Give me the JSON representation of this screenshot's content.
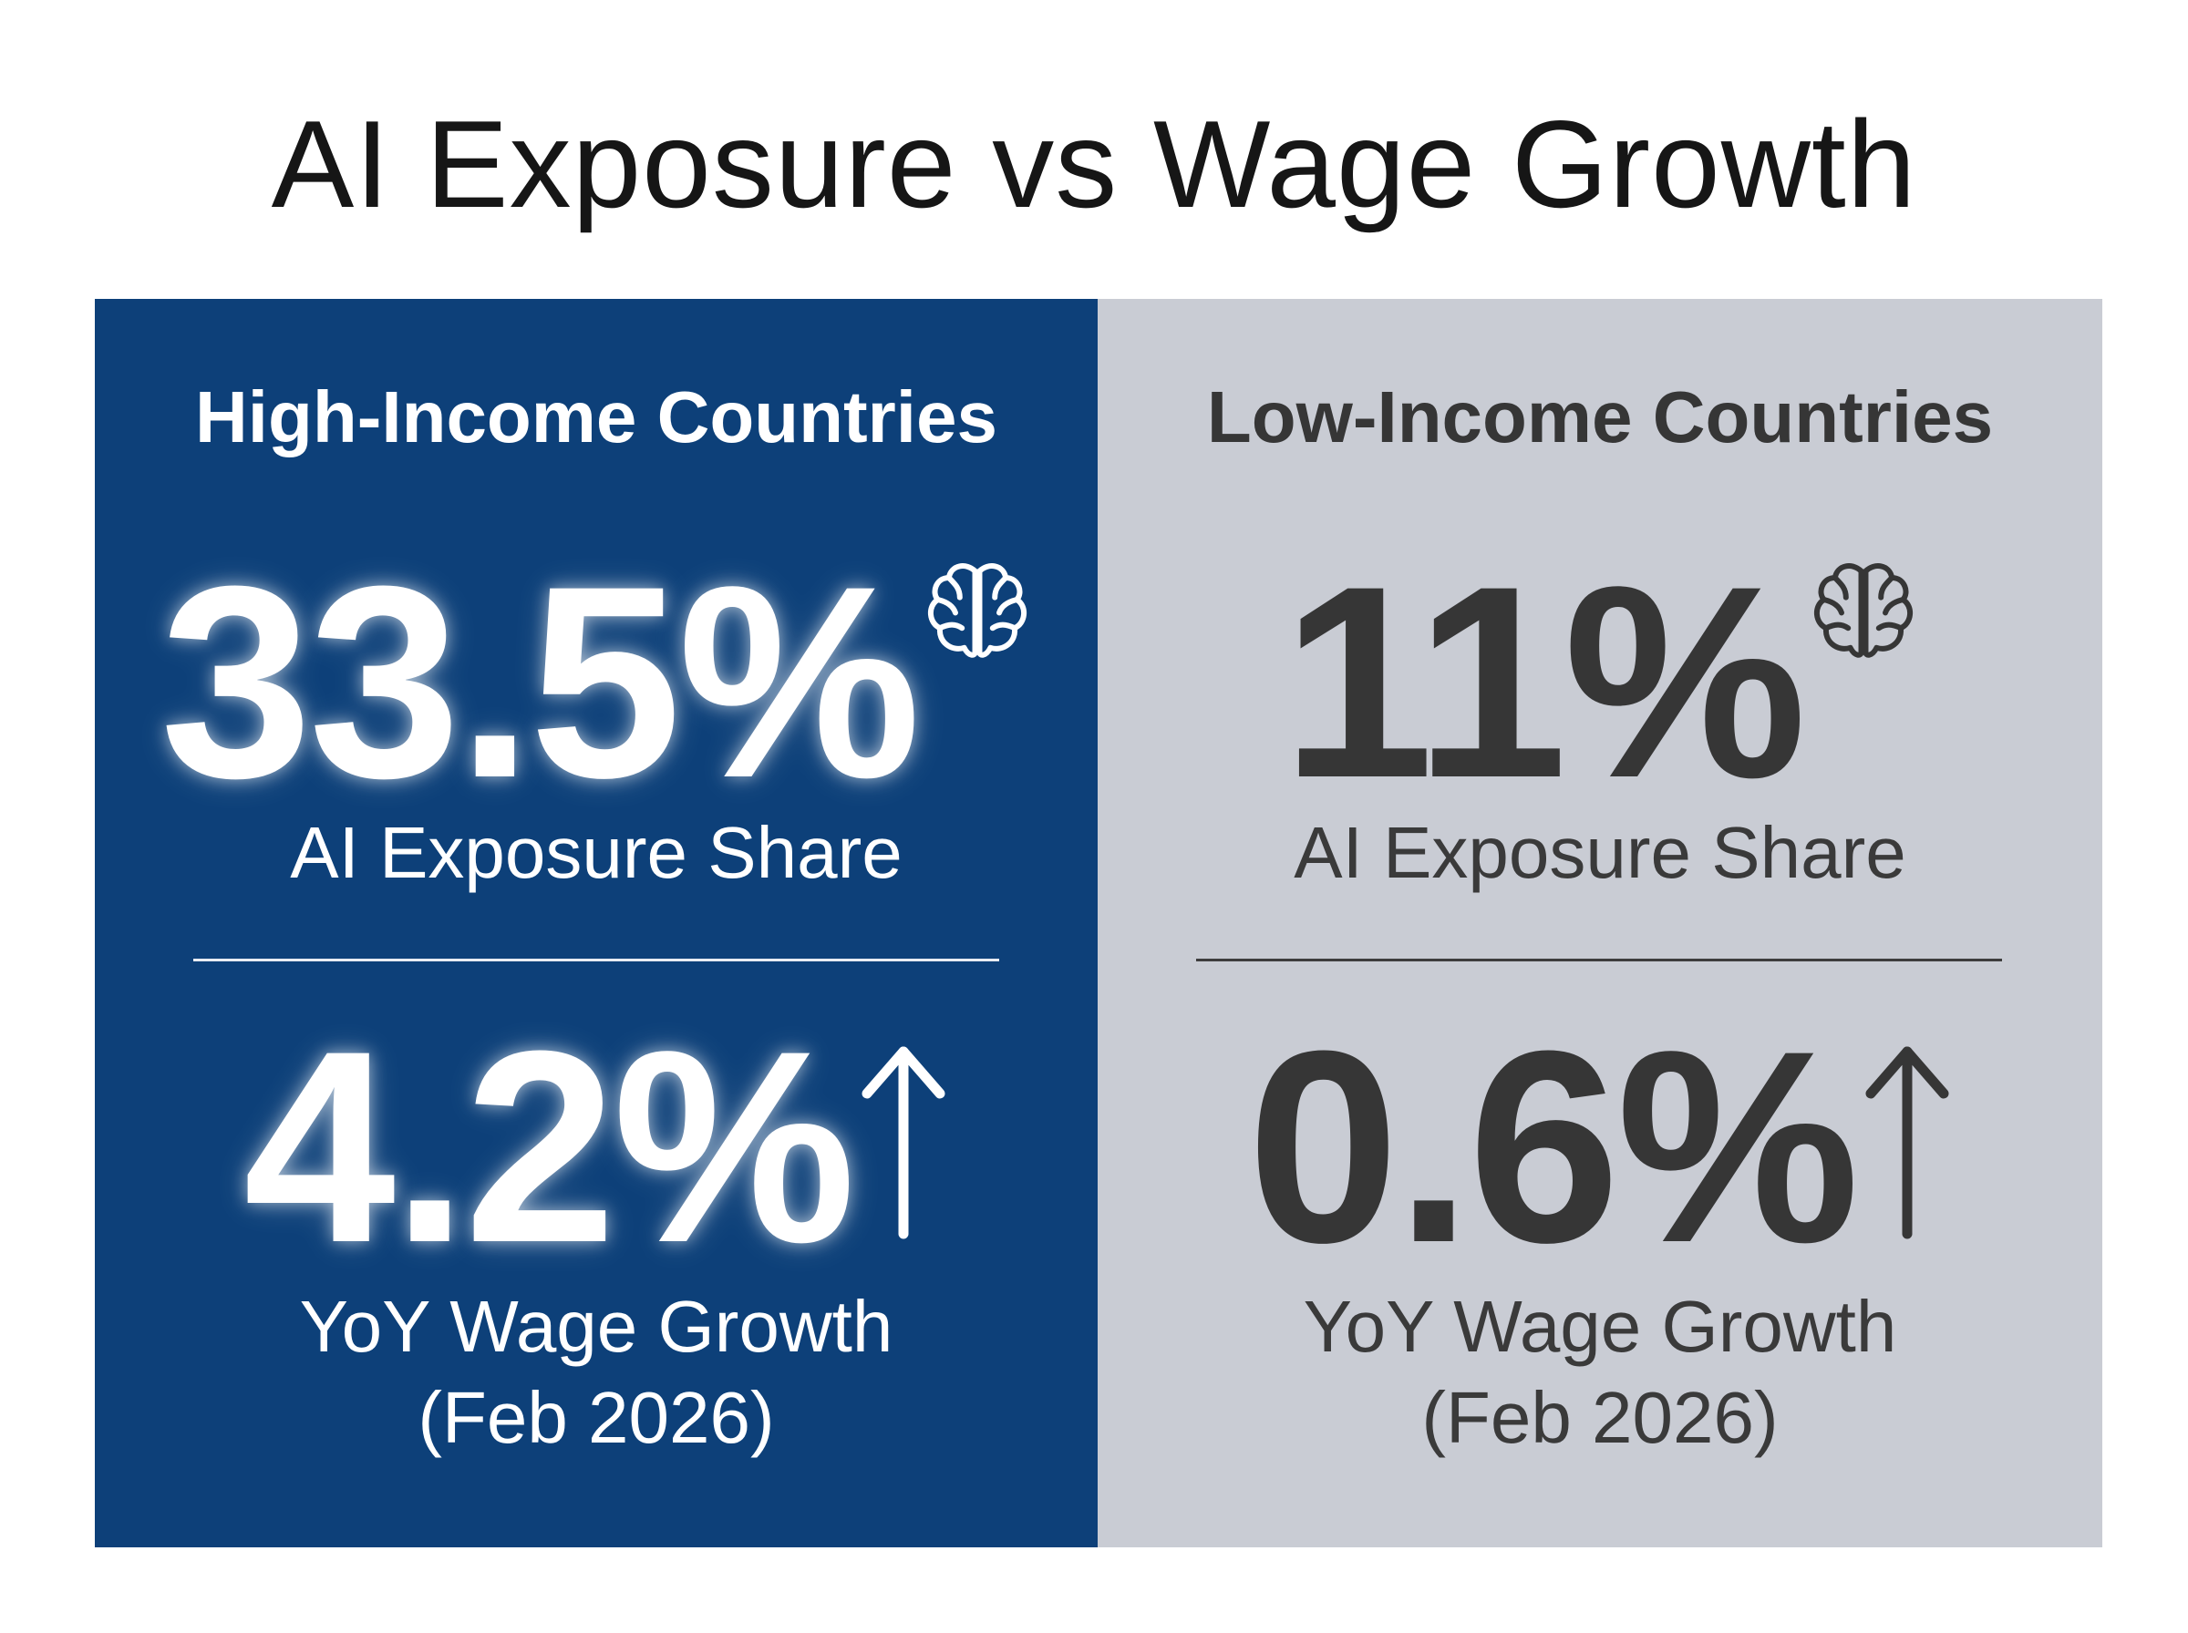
{
  "title": "AI Exposure vs Wage Growth",
  "colors": {
    "high_panel_bg": "#0d4079",
    "low_panel_bg": "#c9ccd4",
    "high_text": "#ffffff",
    "low_text": "#363636"
  },
  "panels": [
    {
      "heading": "High-Income Countries",
      "exposure_value": "33.5%",
      "exposure_icon": "brain-icon",
      "exposure_label": "AI Exposure Share",
      "wage_value": "4.2%",
      "wage_icon": "arrow-up-icon",
      "wage_label": "YoY Wage Growth",
      "wage_period": "(Feb 2026)"
    },
    {
      "heading": "Low-Income Countries",
      "exposure_value": "11%",
      "exposure_icon": "brain-icon",
      "exposure_label": "AI Exposure Share",
      "wage_value": "0.6%",
      "wage_icon": "arrow-up-icon",
      "wage_label": "YoY Wage Growth",
      "wage_period": "(Feb 2026)"
    }
  ]
}
